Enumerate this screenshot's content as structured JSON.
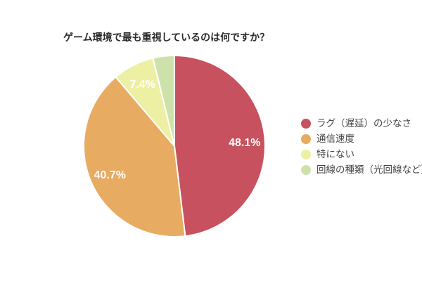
{
  "page": {
    "background": "#ffffff"
  },
  "chart_data": {
    "type": "pie",
    "title": "ゲーム環境で最も重視しているのは何ですか？",
    "legend_position": "right",
    "direction": "clockwise",
    "start_angle_deg": 0,
    "separator_color": "#ffffff",
    "pct_label_color": "#ffffff",
    "slices": [
      {
        "label": "ラグ（遅延）の少なさ",
        "value": 48.1,
        "pct_label": "48.1%",
        "show_pct": true,
        "color": "#c7515e"
      },
      {
        "label": "通信速度",
        "value": 40.7,
        "pct_label": "40.7%",
        "show_pct": true,
        "color": "#e8ab62"
      },
      {
        "label": "特にない",
        "value": 7.4,
        "pct_label": "7.4%",
        "show_pct": true,
        "color": "#edefa3"
      },
      {
        "label": "回線の種類（光回線など）",
        "value": 3.8,
        "pct_label": "",
        "show_pct": false,
        "color": "#cde2ab"
      }
    ]
  }
}
